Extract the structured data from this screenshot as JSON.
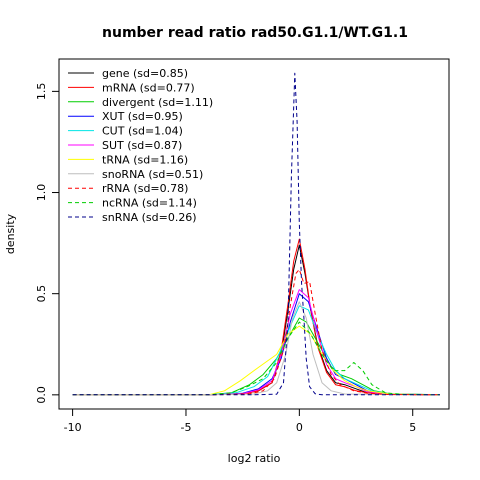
{
  "chart_data": {
    "type": "line",
    "title": "number read ratio rad50.G1.1/WT.G1.1",
    "xlabel": "log2 ratio",
    "ylabel": "density",
    "xlim": [
      -10.6,
      6.6
    ],
    "ylim": [
      -0.07,
      1.66
    ],
    "x_ticks": [
      -10,
      -5,
      0,
      5
    ],
    "y_ticks": [
      0.0,
      0.5,
      1.0,
      1.5
    ],
    "x_tick_labels": [
      "-10",
      "-5",
      "0",
      "5"
    ],
    "y_tick_labels": [
      "0.0",
      "0.5",
      "1.0",
      "1.5"
    ],
    "legend_position": "top-left",
    "series": [
      {
        "name": "gene (sd=0.85)",
        "color": "#000000",
        "dash": "solid",
        "points": [
          [
            -10,
            0
          ],
          [
            -4,
            0
          ],
          [
            -2.5,
            0.005
          ],
          [
            -1.8,
            0.02
          ],
          [
            -1.2,
            0.06
          ],
          [
            -0.8,
            0.2
          ],
          [
            -0.5,
            0.42
          ],
          [
            -0.25,
            0.62
          ],
          [
            0,
            0.74
          ],
          [
            0.25,
            0.6
          ],
          [
            0.5,
            0.42
          ],
          [
            0.8,
            0.25
          ],
          [
            1.2,
            0.12
          ],
          [
            1.6,
            0.06
          ],
          [
            2,
            0.05
          ],
          [
            2.5,
            0.03
          ],
          [
            3,
            0.01
          ],
          [
            4,
            0.002
          ],
          [
            6.2,
            0
          ]
        ]
      },
      {
        "name": "mRNA (sd=0.77)",
        "color": "#ff0000",
        "dash": "solid",
        "points": [
          [
            -10,
            0
          ],
          [
            -4,
            0
          ],
          [
            -2.5,
            0.004
          ],
          [
            -1.8,
            0.02
          ],
          [
            -1.2,
            0.06
          ],
          [
            -0.8,
            0.22
          ],
          [
            -0.5,
            0.45
          ],
          [
            -0.25,
            0.66
          ],
          [
            0,
            0.77
          ],
          [
            0.25,
            0.62
          ],
          [
            0.5,
            0.42
          ],
          [
            0.8,
            0.24
          ],
          [
            1.2,
            0.11
          ],
          [
            1.6,
            0.05
          ],
          [
            2,
            0.04
          ],
          [
            2.5,
            0.02
          ],
          [
            3,
            0.01
          ],
          [
            4,
            0.002
          ],
          [
            6.2,
            0
          ]
        ]
      },
      {
        "name": "divergent (sd=1.11)",
        "color": "#00cd00",
        "dash": "solid",
        "points": [
          [
            -10,
            0
          ],
          [
            -4,
            0
          ],
          [
            -3,
            0.01
          ],
          [
            -2.2,
            0.05
          ],
          [
            -1.6,
            0.1
          ],
          [
            -1,
            0.18
          ],
          [
            -0.5,
            0.28
          ],
          [
            0,
            0.38
          ],
          [
            0.3,
            0.36
          ],
          [
            0.6,
            0.3
          ],
          [
            1,
            0.22
          ],
          [
            1.4,
            0.14
          ],
          [
            1.8,
            0.1
          ],
          [
            2.3,
            0.08
          ],
          [
            2.8,
            0.05
          ],
          [
            3.3,
            0.02
          ],
          [
            4,
            0.005
          ],
          [
            6.2,
            0
          ]
        ]
      },
      {
        "name": "XUT (sd=0.95)",
        "color": "#0000ff",
        "dash": "solid",
        "points": [
          [
            -10,
            0
          ],
          [
            -4,
            0
          ],
          [
            -2.5,
            0.008
          ],
          [
            -1.8,
            0.03
          ],
          [
            -1.2,
            0.08
          ],
          [
            -0.8,
            0.18
          ],
          [
            -0.4,
            0.36
          ],
          [
            0,
            0.5
          ],
          [
            0.4,
            0.46
          ],
          [
            0.8,
            0.32
          ],
          [
            1.2,
            0.18
          ],
          [
            1.6,
            0.1
          ],
          [
            2,
            0.08
          ],
          [
            2.5,
            0.05
          ],
          [
            3,
            0.02
          ],
          [
            4,
            0.004
          ],
          [
            6.2,
            0
          ]
        ]
      },
      {
        "name": "CUT (sd=1.04)",
        "color": "#00e5e5",
        "dash": "solid",
        "points": [
          [
            -10,
            0
          ],
          [
            -4,
            0
          ],
          [
            -2.8,
            0.01
          ],
          [
            -2,
            0.04
          ],
          [
            -1.4,
            0.09
          ],
          [
            -0.9,
            0.2
          ],
          [
            -0.4,
            0.34
          ],
          [
            0,
            0.44
          ],
          [
            0.4,
            0.42
          ],
          [
            0.8,
            0.3
          ],
          [
            1.2,
            0.2
          ],
          [
            1.6,
            0.12
          ],
          [
            2,
            0.08
          ],
          [
            2.6,
            0.05
          ],
          [
            3.2,
            0.02
          ],
          [
            4,
            0.004
          ],
          [
            6.2,
            0
          ]
        ]
      },
      {
        "name": "SUT (sd=0.87)",
        "color": "#ff00ff",
        "dash": "solid",
        "points": [
          [
            -10,
            0
          ],
          [
            -4,
            0
          ],
          [
            -2.5,
            0.006
          ],
          [
            -1.8,
            0.025
          ],
          [
            -1.2,
            0.07
          ],
          [
            -0.8,
            0.2
          ],
          [
            -0.4,
            0.4
          ],
          [
            0,
            0.52
          ],
          [
            0.4,
            0.48
          ],
          [
            0.8,
            0.3
          ],
          [
            1.2,
            0.15
          ],
          [
            1.6,
            0.08
          ],
          [
            2,
            0.06
          ],
          [
            2.5,
            0.04
          ],
          [
            3,
            0.015
          ],
          [
            4,
            0.003
          ],
          [
            6.2,
            0
          ]
        ]
      },
      {
        "name": "tRNA (sd=1.16)",
        "color": "#ffff00",
        "dash": "solid",
        "points": [
          [
            -10,
            0
          ],
          [
            -4,
            0
          ],
          [
            -3.3,
            0.02
          ],
          [
            -2.6,
            0.07
          ],
          [
            -2,
            0.12
          ],
          [
            -1.5,
            0.16
          ],
          [
            -1,
            0.2
          ],
          [
            -0.5,
            0.3
          ],
          [
            0,
            0.34
          ],
          [
            0.5,
            0.3
          ],
          [
            1,
            0.2
          ],
          [
            1.5,
            0.12
          ],
          [
            2,
            0.07
          ],
          [
            2.5,
            0.04
          ],
          [
            3,
            0.02
          ],
          [
            4,
            0.004
          ],
          [
            6.2,
            0
          ]
        ]
      },
      {
        "name": "snoRNA (sd=0.51)",
        "color": "#bebebe",
        "dash": "solid",
        "points": [
          [
            -10,
            0
          ],
          [
            -4,
            0
          ],
          [
            -2,
            0.004
          ],
          [
            -1.4,
            0.02
          ],
          [
            -1,
            0.06
          ],
          [
            -0.6,
            0.2
          ],
          [
            -0.3,
            0.38
          ],
          [
            0,
            0.46
          ],
          [
            0.3,
            0.38
          ],
          [
            0.6,
            0.2
          ],
          [
            1,
            0.06
          ],
          [
            1.4,
            0.02
          ],
          [
            2,
            0.004
          ],
          [
            6.2,
            0
          ]
        ]
      },
      {
        "name": "rRNA (sd=0.78)",
        "color": "#ff0000",
        "dash": "4,3",
        "points": [
          [
            -10,
            0
          ],
          [
            -4,
            0
          ],
          [
            -2.2,
            0.005
          ],
          [
            -1.6,
            0.02
          ],
          [
            -1.1,
            0.08
          ],
          [
            -0.7,
            0.22
          ],
          [
            -0.4,
            0.44
          ],
          [
            -0.15,
            0.6
          ],
          [
            0,
            0.62
          ],
          [
            0.2,
            0.55
          ],
          [
            0.45,
            0.56
          ],
          [
            0.7,
            0.4
          ],
          [
            1,
            0.22
          ],
          [
            1.4,
            0.1
          ],
          [
            1.8,
            0.05
          ],
          [
            2.4,
            0.02
          ],
          [
            3,
            0.008
          ],
          [
            4,
            0.001
          ],
          [
            6.2,
            0
          ]
        ]
      },
      {
        "name": "ncRNA (sd=1.14)",
        "color": "#00cd00",
        "dash": "4,3",
        "points": [
          [
            -10,
            0
          ],
          [
            -4,
            0
          ],
          [
            -3,
            0.01
          ],
          [
            -2.3,
            0.04
          ],
          [
            -1.6,
            0.08
          ],
          [
            -1,
            0.16
          ],
          [
            -0.5,
            0.28
          ],
          [
            0,
            0.36
          ],
          [
            0.5,
            0.3
          ],
          [
            1,
            0.2
          ],
          [
            1.5,
            0.12
          ],
          [
            2,
            0.12
          ],
          [
            2.4,
            0.16
          ],
          [
            2.8,
            0.12
          ],
          [
            3.2,
            0.05
          ],
          [
            3.8,
            0.01
          ],
          [
            4.5,
            0.002
          ],
          [
            6.2,
            0
          ]
        ]
      },
      {
        "name": "snRNA (sd=0.26)",
        "color": "#00008b",
        "dash": "4,3",
        "points": [
          [
            -10,
            0
          ],
          [
            -2,
            0
          ],
          [
            -1,
            0.003
          ],
          [
            -0.7,
            0.06
          ],
          [
            -0.5,
            0.36
          ],
          [
            -0.35,
            1.08
          ],
          [
            -0.2,
            1.59
          ],
          [
            -0.1,
            1.35
          ],
          [
            0,
            0.85
          ],
          [
            0.1,
            0.55
          ],
          [
            0.2,
            0.38
          ],
          [
            0.3,
            0.18
          ],
          [
            0.45,
            0.04
          ],
          [
            0.7,
            0.005
          ],
          [
            1,
            0
          ],
          [
            6.2,
            0
          ]
        ]
      }
    ]
  }
}
